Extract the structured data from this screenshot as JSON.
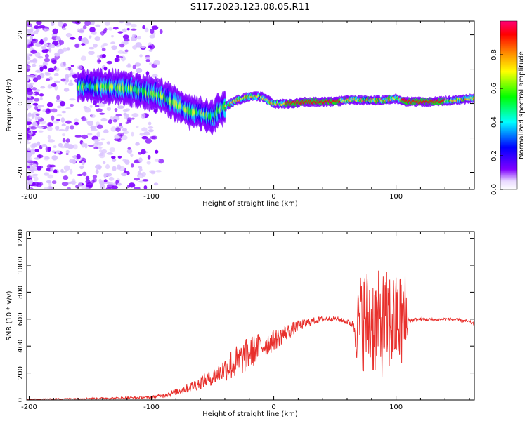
{
  "figure": {
    "title": "S117.2023.123.08.05.R11"
  },
  "chart_data": [
    {
      "type": "heatmap",
      "xlabel": "Height of straight line (km)",
      "ylabel": "Frequency (Hz)",
      "xlim": [
        -202,
        164
      ],
      "ylim": [
        -25,
        24
      ],
      "xticks": [
        -200,
        -100,
        0,
        100
      ],
      "yticks": [
        -20,
        -10,
        0,
        10,
        20
      ],
      "colorbar": {
        "label": "Normalized spectral amplitude",
        "range": [
          0,
          1
        ],
        "ticks": [
          "0.0",
          "0.2",
          "0.4",
          "0.6",
          "0.8"
        ],
        "colormap": [
          "#ffffff",
          "#7f00ff",
          "#0000ff",
          "#00ffff",
          "#00ff00",
          "#ffff00",
          "#ff7f00",
          "#ff0000",
          "#ff00aa"
        ]
      },
      "ridge": {
        "description_points_x": [
          -160,
          -140,
          -120,
          -100,
          -90,
          -80,
          -70,
          -60,
          -50,
          -45,
          -40,
          -30,
          -20,
          -10,
          0,
          10,
          30,
          50,
          60,
          70,
          80,
          90,
          100,
          110,
          130,
          150,
          164
        ],
        "description_points_y": [
          5,
          5,
          4.5,
          3,
          2,
          0,
          -2,
          -3,
          -4,
          -2,
          -1,
          1,
          2,
          2,
          0,
          0,
          0.5,
          0.5,
          1,
          1,
          1,
          1,
          1.5,
          0.5,
          0.5,
          1,
          1.5
        ]
      },
      "grid": false,
      "legend": "none"
    },
    {
      "type": "line",
      "xlabel": "Height of straight line (km)",
      "ylabel": "SNR (10 * v/v)",
      "xlim": [
        -202,
        164
      ],
      "ylim": [
        0,
        1250
      ],
      "xticks": [
        -200,
        -100,
        0,
        100
      ],
      "yticks": [
        0,
        200,
        400,
        600,
        800,
        1000,
        1200
      ],
      "series": [
        {
          "color": "#e8302c",
          "x": [
            -202,
            -160,
            -120,
            -100,
            -90,
            -80,
            -70,
            -60,
            -50,
            -40,
            -35,
            -30,
            -25,
            -20,
            -10,
            0,
            10,
            20,
            30,
            40,
            50,
            60,
            65,
            68,
            70,
            75,
            80,
            85,
            90,
            95,
            100,
            105,
            108,
            110,
            120,
            130,
            140,
            150,
            160,
            164
          ],
          "values": [
            5,
            10,
            15,
            20,
            35,
            60,
            90,
            130,
            170,
            230,
            260,
            280,
            310,
            350,
            400,
            440,
            500,
            550,
            580,
            600,
            605,
            580,
            560,
            520,
            580,
            600,
            580,
            560,
            560,
            580,
            580,
            580,
            570,
            590,
            600,
            595,
            600,
            595,
            580,
            560
          ],
          "noise_amplitude": [
            2,
            5,
            8,
            10,
            15,
            25,
            35,
            50,
            60,
            90,
            120,
            130,
            120,
            130,
            100,
            80,
            60,
            40,
            30,
            20,
            15,
            20,
            30,
            250,
            350,
            400,
            400,
            400,
            400,
            400,
            350,
            400,
            400,
            15,
            12,
            12,
            12,
            12,
            12,
            12
          ]
        }
      ],
      "grid": false,
      "legend": "none"
    }
  ]
}
